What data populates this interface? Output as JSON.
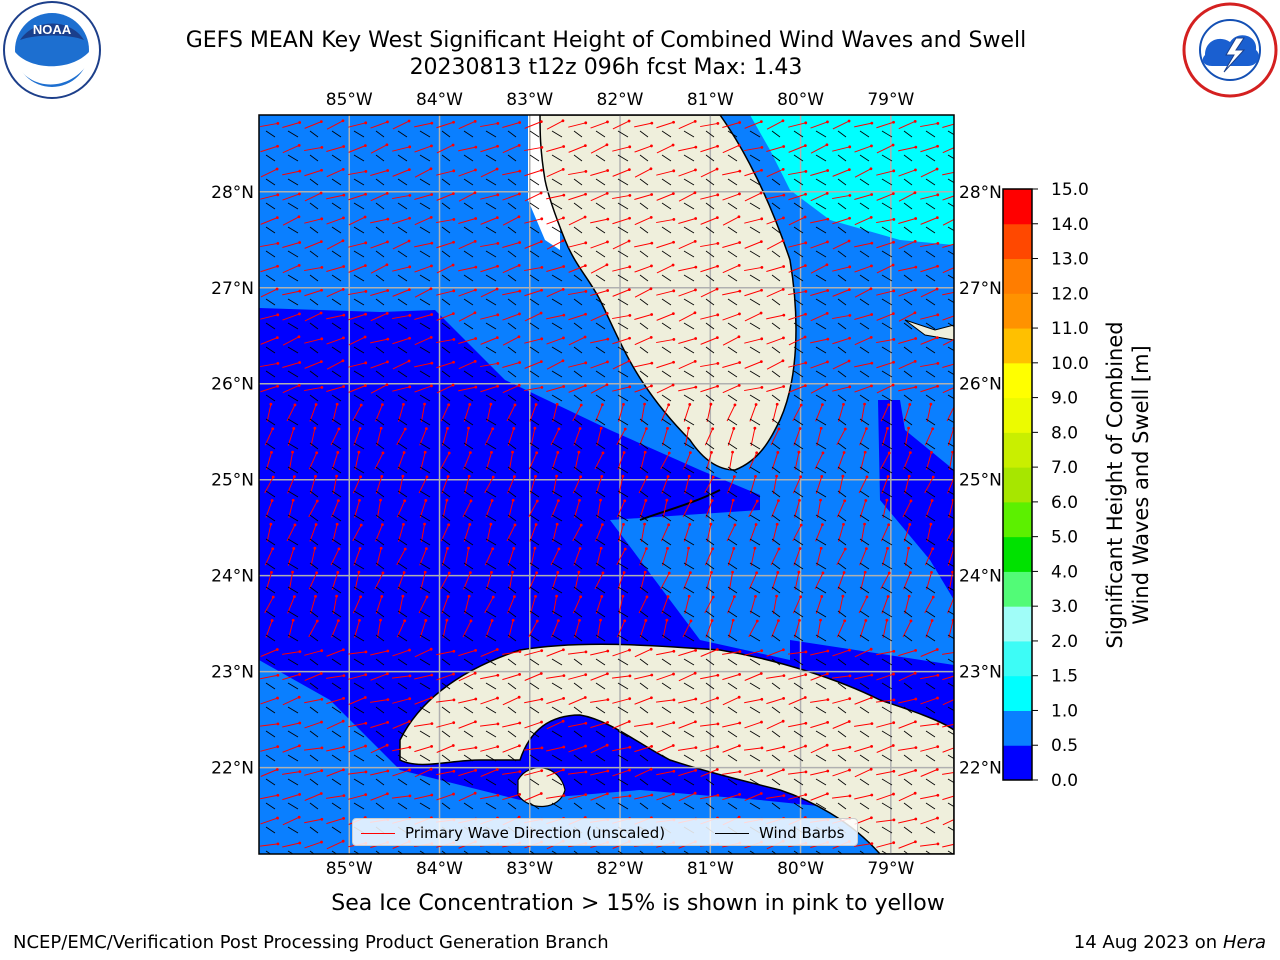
{
  "header": {
    "title_line1": "GEFS MEAN Key West Significant Height of Combined Wind Waves and Swell",
    "title_line2": "20230813 t12z 096h fcst   Max: 1.43"
  },
  "logos": {
    "left": "NOAA",
    "left_icon": "noaa-logo-icon",
    "right_icon": "nws-logo-icon"
  },
  "map": {
    "lon_ticks": [
      "85°W",
      "84°W",
      "83°W",
      "82°W",
      "81°W",
      "80°W",
      "79°W"
    ],
    "lat_ticks": [
      "28°N",
      "27°N",
      "26°N",
      "25°N",
      "24°N",
      "23°N",
      "22°N"
    ],
    "lon_range": [
      -86.0,
      -78.3
    ],
    "lat_range": [
      21.1,
      28.8
    ],
    "gridlines": true,
    "land_color": "#efefdc",
    "coast_color": "#000000"
  },
  "legend": {
    "wave_label": "Primary Wave Direction (unscaled)",
    "wave_color": "#ff0000",
    "barb_label": "Wind Barbs",
    "barb_color": "#000000",
    "placement": "bottom-center"
  },
  "colorbar": {
    "label": "Significant Height of Combined Wind Waves and Swell [m]",
    "label_line1": "Significant Height of Combined",
    "label_line2": "Wind Waves and Swell [m]",
    "ticks": [
      "0.0",
      "0.5",
      "1.0",
      "1.5",
      "2.0",
      "3.0",
      "4.0",
      "5.0",
      "6.0",
      "7.0",
      "8.0",
      "9.0",
      "10.0",
      "11.0",
      "12.0",
      "13.0",
      "14.0",
      "15.0"
    ],
    "colors": [
      "#0000ff",
      "#0a7fff",
      "#00ffff",
      "#3dfcf6",
      "#a0fdf8",
      "#52fb77",
      "#00e200",
      "#5cf000",
      "#a7e600",
      "#c9ef00",
      "#ecfb00",
      "#ffff00",
      "#ffc000",
      "#ff9200",
      "#ff7d00",
      "#ff4800",
      "#ff0000"
    ]
  },
  "chart_data": {
    "type": "heatmap",
    "variable": "Significant Height of Combined Wind Waves and Swell",
    "units": "m",
    "max": 1.43,
    "regions": [
      {
        "area": "Gulf of Mexico west of Florida",
        "range_m": "0.5-1.0"
      },
      {
        "area": "Southeastern Gulf and Florida Straits",
        "range_m": "0.0-0.5"
      },
      {
        "area": "Atlantic northeast of 27.5N, east of 79.5W",
        "range_m": "1.0-1.5"
      },
      {
        "area": "Atlantic east of Florida and Bahamas",
        "range_m": "0.5-1.0"
      }
    ]
  },
  "notes": {
    "sea_ice": "Sea Ice Concentration > 15% is shown in pink to yellow"
  },
  "footer": {
    "left": "NCEP/EMC/Verification Post Processing Product Generation Branch",
    "right_date": "14 Aug 2023 on",
    "right_host": "Hera"
  }
}
